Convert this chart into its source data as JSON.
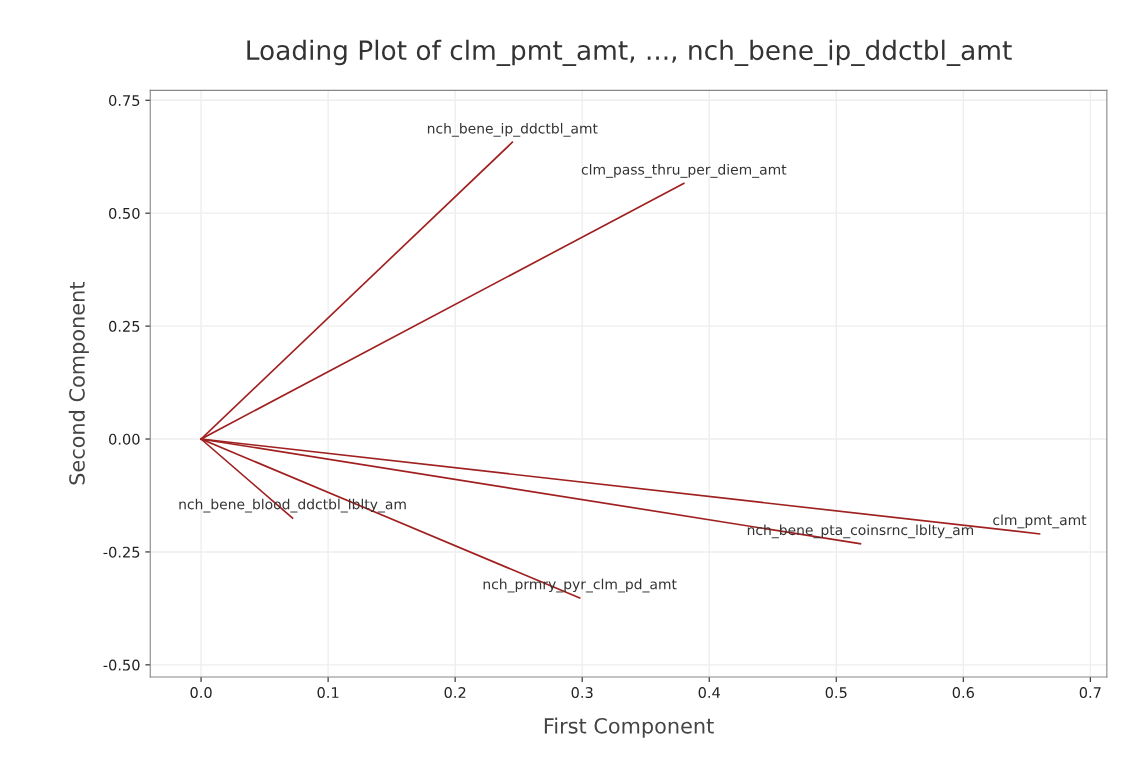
{
  "chart_data": {
    "type": "line",
    "title": "Loading Plot of clm_pmt_amt, ..., nch_bene_ip_ddctbl_amt",
    "xlabel": "First Component",
    "ylabel": "Second Component",
    "series": [
      {
        "name": "nch_bene_ip_ddctbl_amt",
        "color": "#a02020",
        "x": [
          0,
          0.245
        ],
        "values": [
          0,
          0.657
        ]
      },
      {
        "name": "clm_pass_thru_per_diem_amt",
        "color": "#a02020",
        "x": [
          0,
          0.38
        ],
        "values": [
          0,
          0.566
        ]
      },
      {
        "name": "clm_pmt_amt",
        "color": "#a02020",
        "x": [
          0,
          0.66
        ],
        "values": [
          0,
          -0.21
        ]
      },
      {
        "name": "nch_bene_pta_coinsrnc_lblty_am",
        "color": "#a02020",
        "x": [
          0,
          0.519
        ],
        "values": [
          0,
          -0.232
        ]
      },
      {
        "name": "nch_prmry_pyr_clm_pd_amt",
        "color": "#a02020",
        "x": [
          0,
          0.298
        ],
        "values": [
          0,
          -0.352
        ]
      },
      {
        "name": "nch_bene_blood_ddctbl_lblty_am",
        "color": "#a02020",
        "x": [
          0,
          0.072
        ],
        "values": [
          0,
          -0.175
        ]
      }
    ],
    "xlim": [
      -0.04,
      0.713
    ],
    "ylim": [
      -0.527,
      0.772
    ],
    "xticks": [
      {
        "value": 0,
        "label": "0.0"
      },
      0.1,
      0.2,
      0.3,
      0.4,
      0.5,
      0.6,
      0.7
    ],
    "yticks": [
      {
        "value": -0.5,
        "label": "-0.50"
      },
      {
        "value": -0.25,
        "label": "-0.25"
      },
      {
        "value": 0,
        "label": "0.00"
      },
      {
        "value": 0.25,
        "label": "0.25"
      },
      {
        "value": 0.5,
        "label": "0.50"
      },
      {
        "value": 0.75,
        "label": "0.75"
      }
    ],
    "grid": true,
    "legend": false,
    "marker": "none",
    "line_style": "solid"
  }
}
